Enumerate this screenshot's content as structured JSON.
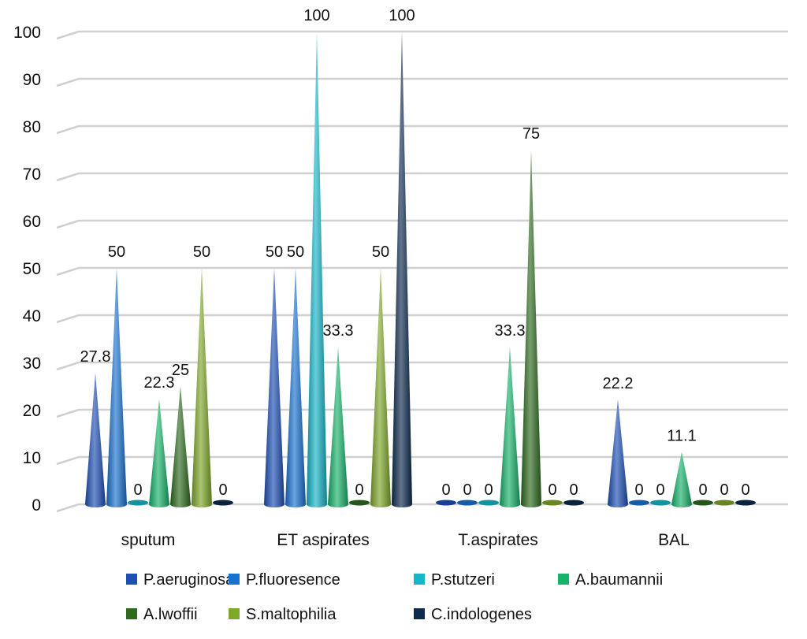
{
  "chart_data": {
    "type": "bar",
    "style": "3d-cone",
    "categories": [
      "sputum",
      "ET aspirates",
      "T.aspirates",
      "BAL"
    ],
    "ylim": [
      0,
      100
    ],
    "yticks": [
      0,
      10,
      20,
      30,
      40,
      50,
      60,
      70,
      80,
      90,
      100
    ],
    "grid": true,
    "legend": "bottom",
    "series": [
      {
        "name": "P.aeruginosa",
        "color": "#1f4fb5",
        "values": [
          27.8,
          50,
          0,
          22.2
        ]
      },
      {
        "name": "P.fluoresence",
        "color": "#1a72d0",
        "values": [
          50,
          50,
          0,
          0
        ]
      },
      {
        "name": "P.stutzeri",
        "color": "#17b5c8",
        "values": [
          0,
          100,
          0,
          0
        ]
      },
      {
        "name": "A.baumannii",
        "color": "#18b36a",
        "values": [
          22.3,
          33.3,
          33.3,
          11.1
        ]
      },
      {
        "name": "A.lwoffii",
        "color": "#2e6b1f",
        "values": [
          25,
          0,
          75,
          0
        ]
      },
      {
        "name": "S.maltophilia",
        "color": "#7ea82a",
        "values": [
          50,
          50,
          0,
          0
        ]
      },
      {
        "name": "C.indologenes",
        "color": "#0e2a4e",
        "values": [
          0,
          100,
          0,
          0
        ]
      }
    ]
  }
}
